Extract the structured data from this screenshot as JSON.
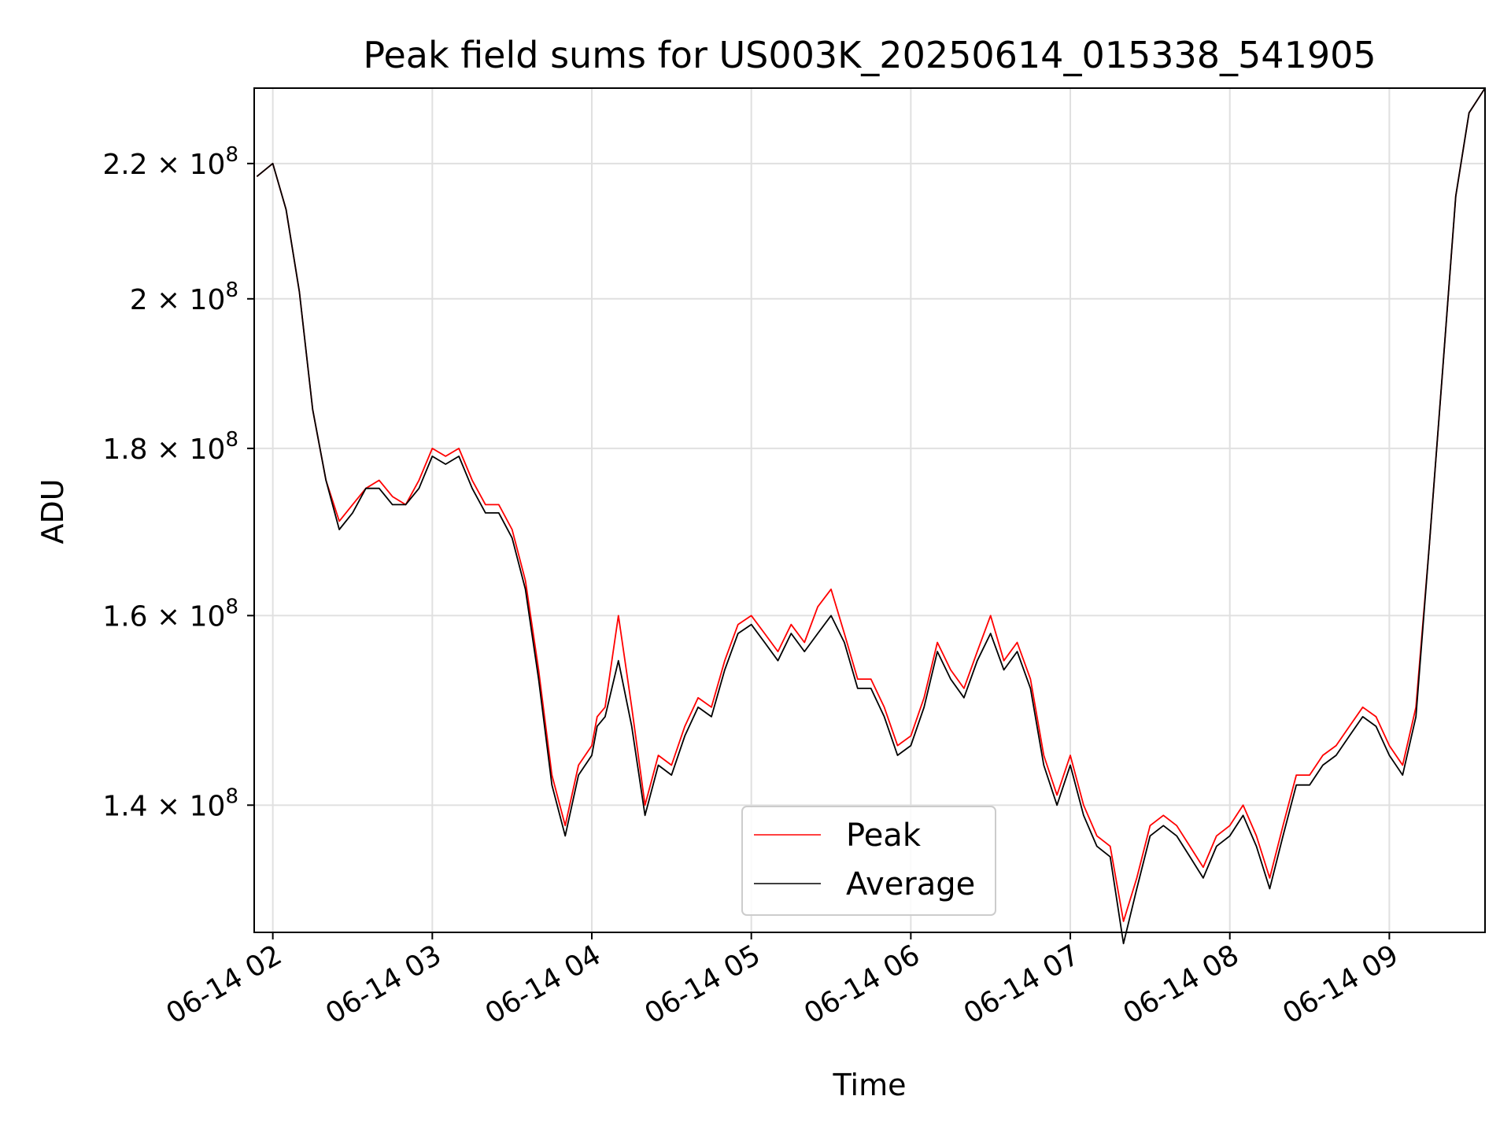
{
  "chart_data": {
    "type": "line",
    "title": "Peak field sums for US003K_20250614_015338_541905",
    "xlabel": "Time",
    "ylabel": "ADU",
    "yscale": "log",
    "grid": true,
    "legend_position": "lower center",
    "x_range": [
      "06-14 01:53",
      "06-14 09:36"
    ],
    "ylim": [
      128000000,
      232000000
    ],
    "x_ticks": [
      "06-14 02",
      "06-14 03",
      "06-14 04",
      "06-14 05",
      "06-14 06",
      "06-14 07",
      "06-14 08",
      "06-14 09"
    ],
    "y_ticks": [
      {
        "value": 140000000,
        "mantissa": "1.4"
      },
      {
        "value": 160000000,
        "mantissa": "1.6"
      },
      {
        "value": 180000000,
        "mantissa": "1.8"
      },
      {
        "value": 200000000,
        "mantissa": "2"
      },
      {
        "value": 220000000,
        "mantissa": "2.2"
      }
    ],
    "y_tick_format": {
      "times": "×",
      "base": "10",
      "exponent": "8"
    },
    "x": [
      "01:54",
      "02:00",
      "02:05",
      "02:10",
      "02:15",
      "02:20",
      "02:25",
      "02:30",
      "02:35",
      "02:40",
      "02:45",
      "02:50",
      "02:55",
      "03:00",
      "03:05",
      "03:10",
      "03:15",
      "03:20",
      "03:25",
      "03:30",
      "03:35",
      "03:40",
      "03:45",
      "03:50",
      "03:55",
      "04:00",
      "04:02",
      "04:05",
      "04:10",
      "04:15",
      "04:20",
      "04:25",
      "04:30",
      "04:35",
      "04:40",
      "04:45",
      "04:50",
      "04:55",
      "05:00",
      "05:05",
      "05:10",
      "05:15",
      "05:20",
      "05:25",
      "05:30",
      "05:35",
      "05:40",
      "05:45",
      "05:50",
      "05:55",
      "06:00",
      "06:05",
      "06:10",
      "06:15",
      "06:20",
      "06:25",
      "06:30",
      "06:35",
      "06:40",
      "06:45",
      "06:50",
      "06:55",
      "07:00",
      "07:05",
      "07:10",
      "07:15",
      "07:20",
      "07:25",
      "07:30",
      "07:35",
      "07:40",
      "07:45",
      "07:50",
      "07:55",
      "08:00",
      "08:05",
      "08:10",
      "08:15",
      "08:20",
      "08:25",
      "08:30",
      "08:35",
      "08:40",
      "08:45",
      "08:50",
      "08:55",
      "09:00",
      "09:05",
      "09:10",
      "09:15",
      "09:20",
      "09:25",
      "09:30",
      "09:36"
    ],
    "series": [
      {
        "name": "Peak",
        "color": "#ff0000",
        "values": [
          218,
          220,
          213,
          201,
          185,
          176,
          171,
          173,
          175,
          176,
          174,
          173,
          176,
          180,
          179,
          180,
          176,
          173,
          173,
          170,
          164,
          154,
          143,
          138,
          144,
          146,
          149,
          150,
          160,
          150,
          140,
          145,
          144,
          148,
          151,
          150,
          155,
          159,
          160,
          158,
          156,
          159,
          157,
          161,
          163,
          158,
          153,
          153,
          150,
          146,
          147,
          151,
          157,
          154,
          152,
          156,
          160,
          155,
          157,
          153,
          145,
          141,
          145,
          140,
          137,
          136,
          129,
          133,
          138,
          139,
          138,
          136,
          134,
          137,
          138,
          140,
          137,
          133,
          138,
          143,
          143,
          145,
          146,
          148,
          150,
          149,
          146,
          144,
          150,
          168,
          190,
          215,
          228,
          232
        ]
      },
      {
        "name": "Average",
        "color": "#000000",
        "values": [
          218,
          220,
          213,
          201,
          185,
          176,
          170,
          172,
          175,
          175,
          173,
          173,
          175,
          179,
          178,
          179,
          175,
          172,
          172,
          169,
          163,
          153,
          142,
          137,
          143,
          145,
          148,
          149,
          155,
          148,
          139,
          144,
          143,
          147,
          150,
          149,
          154,
          158,
          159,
          157,
          155,
          158,
          156,
          158,
          160,
          157,
          152,
          152,
          149,
          145,
          146,
          150,
          156,
          153,
          151,
          155,
          158,
          154,
          156,
          152,
          144,
          140,
          144,
          139,
          136,
          135,
          127,
          132,
          137,
          138,
          137,
          135,
          133,
          136,
          137,
          139,
          136,
          132,
          137,
          142,
          142,
          144,
          145,
          147,
          149,
          148,
          145,
          143,
          149,
          168,
          190,
          215,
          228,
          232
        ]
      }
    ]
  }
}
